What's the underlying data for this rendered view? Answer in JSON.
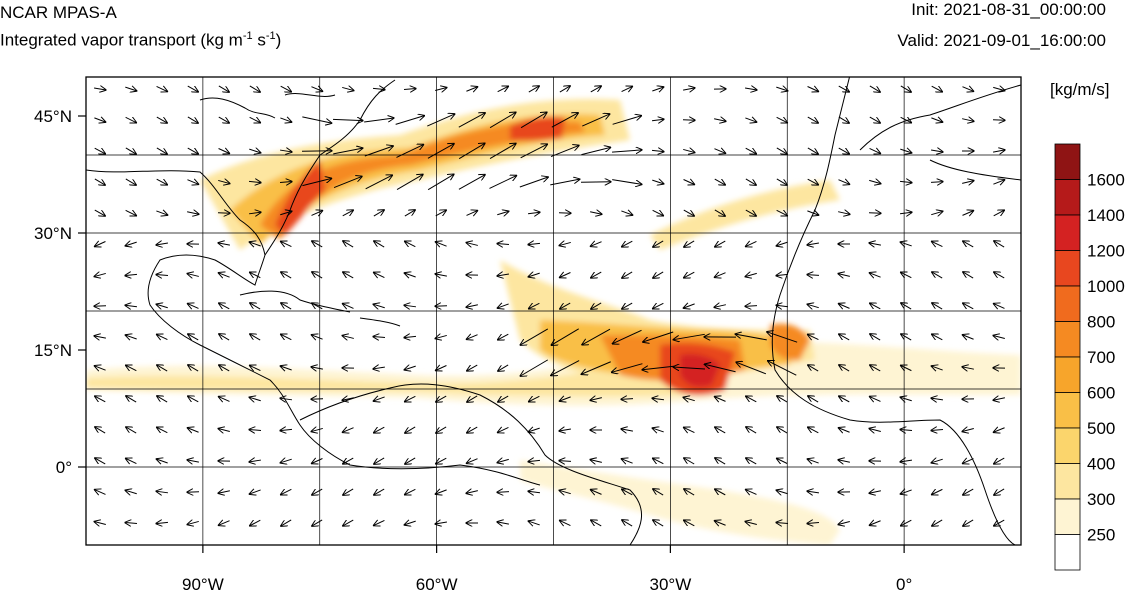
{
  "header": {
    "model": "NCAR MPAS-A",
    "field_title": "Integrated vapor transport (kg m",
    "field_exp1": "-1",
    "field_mid": " s",
    "field_exp2": "-1",
    "field_end": ")",
    "init": "Init: 2021-08-31_00:00:00",
    "valid": "Valid: 2021-09-01_16:00:00"
  },
  "map": {
    "lon_range": [
      -105,
      15
    ],
    "lat_range": [
      -10,
      50
    ],
    "lat_ticks": [
      {
        "value": 45,
        "label": "45°N"
      },
      {
        "value": 30,
        "label": "30°N"
      },
      {
        "value": 15,
        "label": "15°N"
      },
      {
        "value": 0,
        "label": "0°"
      }
    ],
    "lon_ticks": [
      {
        "value": -90,
        "label": "90°W"
      },
      {
        "value": -60,
        "label": "60°W"
      },
      {
        "value": -30,
        "label": "30°W"
      },
      {
        "value": 0,
        "label": "0°"
      }
    ],
    "grid_lats": [
      40,
      30,
      20,
      10,
      0
    ],
    "grid_lons": [
      -90,
      -75,
      -60,
      -45,
      -30,
      -15,
      0
    ]
  },
  "colorbar": {
    "unit": "[kg/m/s]",
    "levels": [
      {
        "label": "1600",
        "color": "#8f1414"
      },
      {
        "label": "1400",
        "color": "#b51a1a"
      },
      {
        "label": "1200",
        "color": "#d42222"
      },
      {
        "label": "1000",
        "color": "#e8471f"
      },
      {
        "label": "800",
        "color": "#f06b1e"
      },
      {
        "label": "700",
        "color": "#f58a22"
      },
      {
        "label": "600",
        "color": "#f7a52b"
      },
      {
        "label": "500",
        "color": "#f9bf47"
      },
      {
        "label": "400",
        "color": "#fbd56c"
      },
      {
        "label": "300",
        "color": "#fde6a0"
      },
      {
        "label": "250",
        "color": "#fef4d3"
      }
    ]
  }
}
